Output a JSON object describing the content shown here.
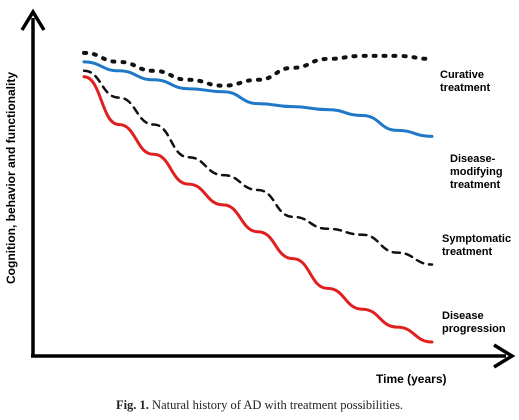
{
  "chart_data": {
    "type": "line",
    "xlabel": "Time (years)",
    "ylabel": "Cognition, behavior and functionality",
    "xlim": [
      0,
      100
    ],
    "ylim": [
      0,
      100
    ],
    "x": [
      0,
      10,
      20,
      30,
      40,
      50,
      60,
      70,
      80,
      90,
      100
    ],
    "series": [
      {
        "name": "Curative treatment",
        "color": "#111111",
        "style": "dotted",
        "values": [
          97,
          94,
          91,
          88,
          86,
          88,
          92,
          95,
          96,
          96,
          95
        ]
      },
      {
        "name": "Disease-modifying treatment",
        "color": "#1f78c8",
        "style": "solid",
        "values": [
          94,
          91,
          88,
          85,
          84,
          80,
          79,
          78,
          76,
          71,
          69
        ]
      },
      {
        "name": "Symptomatic treatment",
        "color": "#111111",
        "style": "dashed",
        "values": [
          91,
          82,
          73,
          62,
          56,
          51,
          42,
          38,
          36,
          30,
          26
        ]
      },
      {
        "name": "Disease progression",
        "color": "#e02020",
        "style": "solid",
        "values": [
          89,
          73,
          63,
          53,
          46,
          37,
          28,
          18,
          11,
          5,
          0
        ]
      }
    ]
  },
  "caption": {
    "label": "Fig. 1.",
    "text": "Natural history of AD with treatment possibilities."
  }
}
